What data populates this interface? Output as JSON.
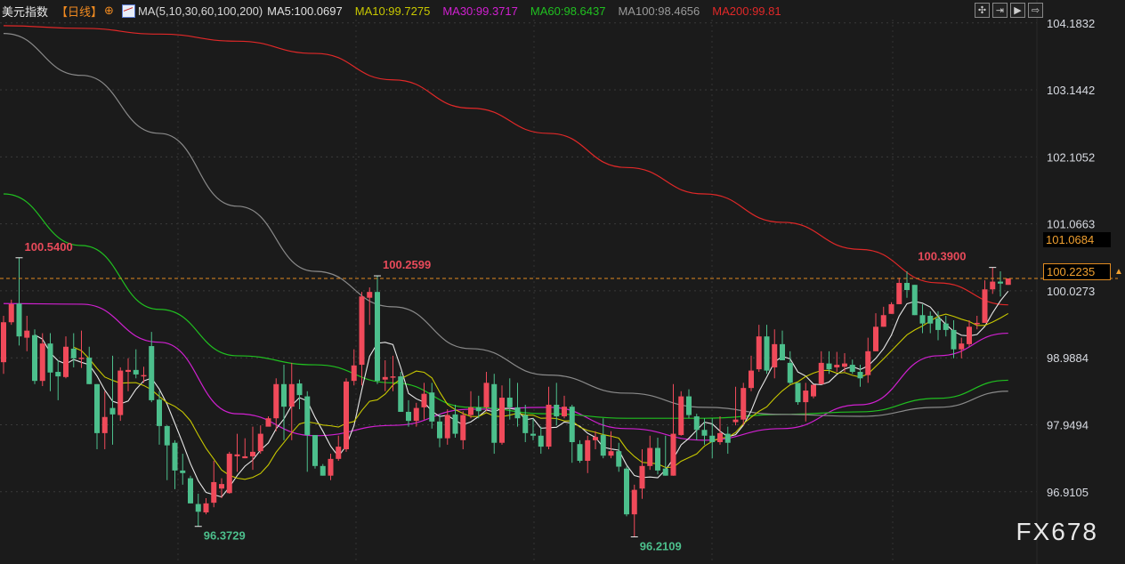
{
  "header": {
    "title": "美元指数",
    "period": "【日线】",
    "period_icon": "crosshair-circle-icon",
    "ma_set": "MA(5,10,30,60,100,200)",
    "ma_values": [
      {
        "label": "MA5:100.0697",
        "color": "#e0e0e0"
      },
      {
        "label": "MA10:99.7275",
        "color": "#c8c800"
      },
      {
        "label": "MA30:99.3717",
        "color": "#d020d0"
      },
      {
        "label": "MA60:98.6437",
        "color": "#20c020"
      },
      {
        "label": "MA100:98.4656",
        "color": "#9a9a9a"
      },
      {
        "label": "MA200:99.81",
        "color": "#e02828"
      }
    ]
  },
  "toolbar": [
    {
      "icon": "crosshair-icon",
      "glyph": "✣"
    },
    {
      "icon": "zoom-range-icon",
      "glyph": "⇥"
    },
    {
      "icon": "play-icon",
      "glyph": "▶"
    },
    {
      "icon": "move-right-icon",
      "glyph": "⇨"
    }
  ],
  "watermark": "FX678",
  "chart_data": {
    "type": "candlestick",
    "colors": {
      "up": "#f04a5a",
      "down": "#4cbf8c",
      "background": "#1b1b1b",
      "last_price_line": "#e08a20"
    },
    "y_ticks": [
      "104.1832",
      "103.1442",
      "102.1052",
      "101.0663",
      "100.0273",
      "98.9884",
      "97.9494",
      "96.9105"
    ],
    "y_range": [
      95.9,
      104.54
    ],
    "price_boxes": [
      "101.0684",
      "100.2235"
    ],
    "last_price": 100.2235,
    "annotations": [
      {
        "text": "100.5400",
        "type": "high",
        "index": 2,
        "value": 100.54
      },
      {
        "text": "100.2599",
        "type": "high",
        "index": 48,
        "value": 100.2599
      },
      {
        "text": "96.3729",
        "type": "low",
        "index": 25,
        "value": 96.3729
      },
      {
        "text": "96.2109",
        "type": "low",
        "index": 81,
        "value": 96.2109
      },
      {
        "text": "100.3900",
        "type": "high",
        "index": 127,
        "value": 100.39
      }
    ],
    "candles_ohlc": [
      [
        98.92,
        99.64,
        98.74,
        99.54
      ],
      [
        99.54,
        99.89,
        99.5,
        99.82
      ],
      [
        99.83,
        100.54,
        99.18,
        99.32
      ],
      [
        99.3,
        99.64,
        99.09,
        99.41
      ],
      [
        99.34,
        99.43,
        98.58,
        98.63
      ],
      [
        98.63,
        99.37,
        98.55,
        99.21
      ],
      [
        99.21,
        99.37,
        98.47,
        98.76
      ],
      [
        98.77,
        98.95,
        98.33,
        98.7
      ],
      [
        98.69,
        99.32,
        98.67,
        99.16
      ],
      [
        99.13,
        99.37,
        98.84,
        98.98
      ],
      [
        98.97,
        99.41,
        98.83,
        98.99
      ],
      [
        98.99,
        99.16,
        98.58,
        98.58
      ],
      [
        98.58,
        98.58,
        97.57,
        97.82
      ],
      [
        97.82,
        98.47,
        97.57,
        98.07
      ],
      [
        98.21,
        99.02,
        97.64,
        98.11
      ],
      [
        98.1,
        98.84,
        98.01,
        98.79
      ],
      [
        98.77,
        98.98,
        98.47,
        98.8
      ],
      [
        98.8,
        99.12,
        98.67,
        98.73
      ],
      [
        98.7,
        98.85,
        98.6,
        98.72
      ],
      [
        99.17,
        99.39,
        98.3,
        98.33
      ],
      [
        98.34,
        98.47,
        97.64,
        97.93
      ],
      [
        97.93,
        97.94,
        97.09,
        97.63
      ],
      [
        97.67,
        97.71,
        96.95,
        97.24
      ],
      [
        97.24,
        97.5,
        97.02,
        97.2
      ],
      [
        97.12,
        97.16,
        96.73,
        96.73
      ],
      [
        96.72,
        96.88,
        96.37,
        96.6
      ],
      [
        96.59,
        96.81,
        96.56,
        96.73
      ],
      [
        96.74,
        97.39,
        96.67,
        97.06
      ],
      [
        96.96,
        97.12,
        96.81,
        97.03
      ],
      [
        96.89,
        97.53,
        96.88,
        97.5
      ],
      [
        97.46,
        97.81,
        97.22,
        97.49
      ],
      [
        97.43,
        97.74,
        97.43,
        97.46
      ],
      [
        97.46,
        97.92,
        97.25,
        97.53
      ],
      [
        97.54,
        97.94,
        97.5,
        97.81
      ],
      [
        97.92,
        98.08,
        97.94,
        98.05
      ],
      [
        98.05,
        98.67,
        97.85,
        98.58
      ],
      [
        98.58,
        98.88,
        97.71,
        98.23
      ],
      [
        98.23,
        98.91,
        97.71,
        98.58
      ],
      [
        98.59,
        98.65,
        98.19,
        98.41
      ],
      [
        98.39,
        98.47,
        97.22,
        97.79
      ],
      [
        97.79,
        97.79,
        97.27,
        97.31
      ],
      [
        97.31,
        97.34,
        97.16,
        97.16
      ],
      [
        97.16,
        97.5,
        97.09,
        97.42
      ],
      [
        97.42,
        97.78,
        97.39,
        97.61
      ],
      [
        97.57,
        98.67,
        97.53,
        98.62
      ],
      [
        98.63,
        99.12,
        98.56,
        98.87
      ],
      [
        98.88,
        100.01,
        98.56,
        99.94
      ],
      [
        99.92,
        100.08,
        99.5,
        100.01
      ],
      [
        100.01,
        100.26,
        98.58,
        98.63
      ],
      [
        98.65,
        98.95,
        98.47,
        98.69
      ],
      [
        98.68,
        99.02,
        98.47,
        98.7
      ],
      [
        98.7,
        98.77,
        98.15,
        98.15
      ],
      [
        98.15,
        98.33,
        97.92,
        98.01
      ],
      [
        98.01,
        98.29,
        97.92,
        98.21
      ],
      [
        98.22,
        98.6,
        98.03,
        98.43
      ],
      [
        98.45,
        98.6,
        97.89,
        98.0
      ],
      [
        98.0,
        98.12,
        97.6,
        97.74
      ],
      [
        97.74,
        98.19,
        97.64,
        98.1
      ],
      [
        98.11,
        98.26,
        97.75,
        97.81
      ],
      [
        97.71,
        98.16,
        97.57,
        98.1
      ],
      [
        98.1,
        98.47,
        98.05,
        98.22
      ],
      [
        98.22,
        98.4,
        98.05,
        98.16
      ],
      [
        98.22,
        98.77,
        98.16,
        98.6
      ],
      [
        98.58,
        98.74,
        97.5,
        97.67
      ],
      [
        97.67,
        98.56,
        97.64,
        98.37
      ],
      [
        98.37,
        98.67,
        98.03,
        98.22
      ],
      [
        98.22,
        98.6,
        97.92,
        98.05
      ],
      [
        98.1,
        98.26,
        97.68,
        97.82
      ],
      [
        97.81,
        98.05,
        97.71,
        97.78
      ],
      [
        97.78,
        97.92,
        97.5,
        97.61
      ],
      [
        97.61,
        98.54,
        97.57,
        98.26
      ],
      [
        98.26,
        98.6,
        97.94,
        98.08
      ],
      [
        98.08,
        98.4,
        98.05,
        98.23
      ],
      [
        98.23,
        98.26,
        97.36,
        97.68
      ],
      [
        97.65,
        97.71,
        97.36,
        97.39
      ],
      [
        97.39,
        97.78,
        97.2,
        97.71
      ],
      [
        97.71,
        97.85,
        97.57,
        97.76
      ],
      [
        97.79,
        98.05,
        97.43,
        97.47
      ],
      [
        97.47,
        97.85,
        97.43,
        97.54
      ],
      [
        97.54,
        97.67,
        97.22,
        97.3
      ],
      [
        97.27,
        97.3,
        96.53,
        96.56
      ],
      [
        96.56,
        97.02,
        96.2109,
        96.94
      ],
      [
        96.96,
        97.57,
        96.8,
        97.31
      ],
      [
        97.31,
        97.78,
        97.25,
        97.59
      ],
      [
        97.59,
        97.75,
        97.18,
        97.24
      ],
      [
        97.27,
        97.78,
        97.16,
        97.16
      ],
      [
        97.16,
        98.58,
        97.16,
        97.81
      ],
      [
        97.79,
        98.47,
        97.78,
        98.39
      ],
      [
        98.39,
        98.5,
        98.05,
        98.1
      ],
      [
        98.08,
        98.12,
        97.71,
        97.87
      ],
      [
        97.87,
        98.05,
        97.64,
        97.78
      ],
      [
        97.78,
        98.05,
        97.43,
        97.68
      ],
      [
        97.68,
        98.08,
        97.64,
        97.82
      ],
      [
        97.81,
        97.92,
        97.5,
        97.67
      ],
      [
        97.99,
        98.54,
        97.94,
        98.03
      ],
      [
        98.03,
        98.6,
        97.94,
        98.52
      ],
      [
        98.52,
        99.02,
        98.47,
        98.79
      ],
      [
        98.81,
        99.5,
        98.77,
        99.32
      ],
      [
        99.32,
        99.5,
        98.74,
        98.79
      ],
      [
        98.84,
        99.43,
        98.67,
        99.2
      ],
      [
        99.2,
        99.41,
        98.95,
        98.95
      ],
      [
        98.91,
        99.09,
        98.58,
        98.6
      ],
      [
        98.6,
        98.6,
        98.26,
        98.3
      ],
      [
        98.3,
        98.6,
        98.0,
        98.48
      ],
      [
        98.39,
        98.57,
        98.36,
        98.57
      ],
      [
        98.58,
        99.09,
        98.58,
        98.91
      ],
      [
        98.9,
        99.09,
        98.74,
        98.81
      ],
      [
        98.84,
        99.08,
        98.77,
        98.88
      ],
      [
        98.85,
        99.06,
        98.77,
        98.9
      ],
      [
        98.88,
        98.96,
        98.74,
        98.77
      ],
      [
        98.77,
        98.88,
        98.54,
        98.67
      ],
      [
        98.72,
        99.3,
        98.6,
        99.09
      ],
      [
        99.09,
        99.68,
        99.09,
        99.47
      ],
      [
        99.47,
        99.78,
        99.47,
        99.65
      ],
      [
        99.67,
        99.85,
        99.67,
        99.82
      ],
      [
        99.82,
        100.23,
        99.82,
        100.15
      ],
      [
        100.15,
        100.33,
        99.92,
        100.04
      ],
      [
        100.12,
        100.12,
        99.65,
        99.65
      ],
      [
        99.65,
        99.82,
        99.37,
        99.52
      ],
      [
        99.64,
        99.71,
        99.37,
        99.52
      ],
      [
        99.6,
        99.71,
        99.26,
        99.42
      ],
      [
        99.52,
        99.64,
        99.32,
        99.42
      ],
      [
        99.42,
        99.57,
        98.98,
        99.12
      ],
      [
        99.12,
        99.3,
        98.98,
        99.21
      ],
      [
        99.2,
        99.57,
        99.16,
        99.47
      ],
      [
        99.52,
        99.64,
        99.43,
        99.53
      ],
      [
        99.53,
        100.19,
        99.53,
        100.05
      ],
      [
        100.05,
        100.39,
        99.98,
        100.17
      ],
      [
        100.17,
        100.33,
        99.94,
        100.14
      ],
      [
        100.12,
        100.22,
        100.12,
        100.22
      ]
    ],
    "ma_lines_sampled_every_10_candles": {
      "MA30": {
        "color": "#d020d0",
        "values": [
          99.83,
          99.82,
          99.23,
          98.12,
          97.78,
          97.94,
          98.19,
          98.22,
          97.89,
          97.71,
          97.89,
          98.26,
          99.02,
          99.37
        ]
      },
      "MA60": {
        "color": "#20c020",
        "values": [
          101.53,
          100.73,
          99.74,
          99.02,
          98.88,
          98.6,
          98.22,
          98.12,
          98.05,
          98.05,
          98.11,
          98.15,
          98.36,
          98.64
        ]
      },
      "MA100": {
        "color": "#8a8a8a",
        "values": [
          104.02,
          103.37,
          102.47,
          101.34,
          100.33,
          99.78,
          99.13,
          98.72,
          98.44,
          98.22,
          98.11,
          98.08,
          98.22,
          98.47
        ]
      },
      "MA200": {
        "color": "#e02828",
        "values": [
          104.14,
          104.1,
          104.01,
          103.9,
          103.71,
          103.3,
          102.86,
          102.47,
          101.94,
          101.53,
          101.09,
          100.67,
          100.15,
          99.81
        ]
      }
    },
    "ma_computed": {
      "MA5": "#e8e8e8",
      "MA10": "#c8c800"
    }
  }
}
